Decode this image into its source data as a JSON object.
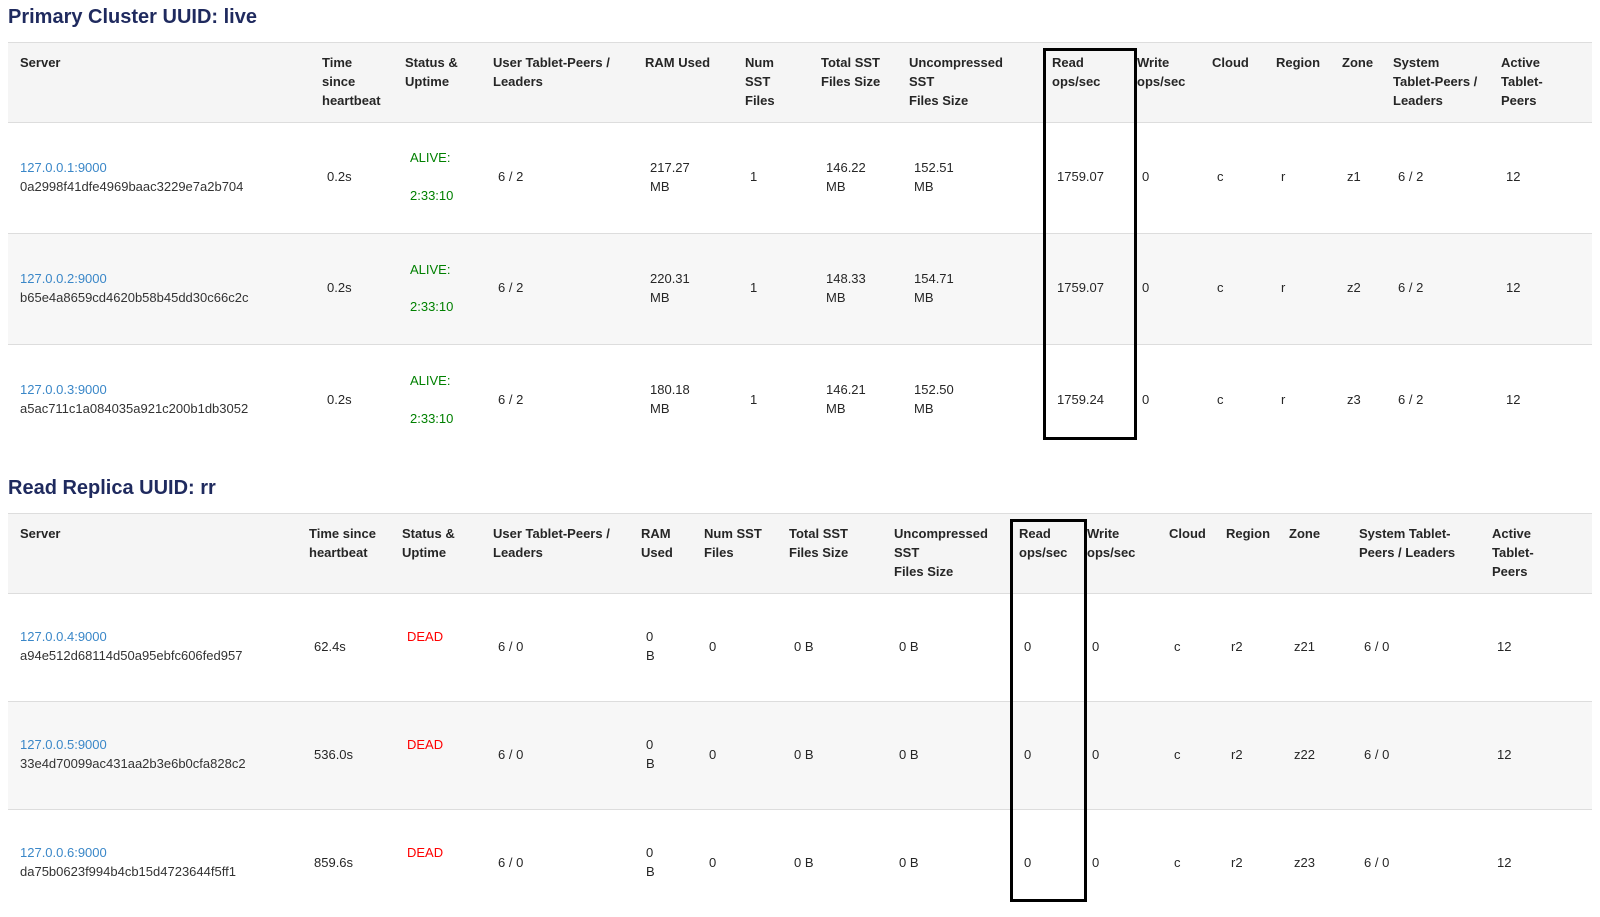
{
  "colors": {
    "title": "#1f2a5e",
    "link": "#3a87c8",
    "alive": "#008000",
    "dead": "#ff0000",
    "header_bg": "#f5f5f5",
    "row_stripe": "#f7f7f7",
    "divider": "#dddddd",
    "highlight_border": "#000000"
  },
  "highlight": {
    "column": "Read ops/sec"
  },
  "sections": [
    {
      "title": "Primary Cluster UUID: live",
      "status_color": "#008000",
      "columns": [
        {
          "key": "server",
          "label": "Server"
        },
        {
          "key": "time-since-heartbeat",
          "label": "Time\nsince\nheartbeat"
        },
        {
          "key": "status-uptime",
          "label": "Status &\nUptime"
        },
        {
          "key": "user-tablet-peers",
          "label": "User Tablet-Peers /\nLeaders"
        },
        {
          "key": "ram-used",
          "label": "RAM Used"
        },
        {
          "key": "num-sst-files",
          "label": "Num SST\nFiles"
        },
        {
          "key": "total-sst-size",
          "label": "Total SST\nFiles Size"
        },
        {
          "key": "uncompressed-sst-size",
          "label": "Uncompressed\nSST\nFiles Size"
        },
        {
          "key": "read-ops",
          "label": "Read\nops/sec"
        },
        {
          "key": "write-ops",
          "label": "Write\nops/sec"
        },
        {
          "key": "cloud",
          "label": "Cloud"
        },
        {
          "key": "region",
          "label": "Region"
        },
        {
          "key": "zone",
          "label": "Zone"
        },
        {
          "key": "system-tablet-peers",
          "label": "System\nTablet-Peers /\nLeaders"
        },
        {
          "key": "active-tablet-peers",
          "label": "Active\nTablet-\nPeers"
        }
      ],
      "rows": [
        {
          "address": "127.0.0.1:9000",
          "uuid": "0a2998f41dfe4969baac3229e7a2b704",
          "heartbeat": "0.2s",
          "status": "ALIVE:",
          "uptime": "2:33:10",
          "user_peers": "6 / 2",
          "ram": "217.27\nMB",
          "num_sst": "1",
          "total_sst": "146.22\nMB",
          "uncompressed_sst": "152.51\nMB",
          "read_ops": "1759.07",
          "write_ops": "0",
          "cloud": "c",
          "region": "r",
          "zone": "z1",
          "system_peers": "6 / 2",
          "active_peers": "12"
        },
        {
          "address": "127.0.0.2:9000",
          "uuid": "b65e4a8659cd4620b58b45dd30c66c2c",
          "heartbeat": "0.2s",
          "status": "ALIVE:",
          "uptime": "2:33:10",
          "user_peers": "6 / 2",
          "ram": "220.31\nMB",
          "num_sst": "1",
          "total_sst": "148.33\nMB",
          "uncompressed_sst": "154.71\nMB",
          "read_ops": "1759.07",
          "write_ops": "0",
          "cloud": "c",
          "region": "r",
          "zone": "z2",
          "system_peers": "6 / 2",
          "active_peers": "12"
        },
        {
          "address": "127.0.0.3:9000",
          "uuid": "a5ac711c1a084035a921c200b1db3052",
          "heartbeat": "0.2s",
          "status": "ALIVE:",
          "uptime": "2:33:10",
          "user_peers": "6 / 2",
          "ram": "180.18\nMB",
          "num_sst": "1",
          "total_sst": "146.21\nMB",
          "uncompressed_sst": "152.50\nMB",
          "read_ops": "1759.24",
          "write_ops": "0",
          "cloud": "c",
          "region": "r",
          "zone": "z3",
          "system_peers": "6 / 2",
          "active_peers": "12"
        }
      ]
    },
    {
      "title": "Read Replica UUID: rr",
      "status_color": "#ff0000",
      "columns": [
        {
          "key": "server",
          "label": "Server"
        },
        {
          "key": "time-since-heartbeat",
          "label": "Time since\nheartbeat"
        },
        {
          "key": "status-uptime",
          "label": "Status &\nUptime"
        },
        {
          "key": "user-tablet-peers",
          "label": "User Tablet-Peers /\nLeaders"
        },
        {
          "key": "ram-used",
          "label": "RAM\nUsed"
        },
        {
          "key": "num-sst-files",
          "label": "Num SST\nFiles"
        },
        {
          "key": "total-sst-size",
          "label": "Total SST\nFiles Size"
        },
        {
          "key": "uncompressed-sst-size",
          "label": "Uncompressed\nSST\nFiles Size"
        },
        {
          "key": "read-ops",
          "label": "Read\nops/sec"
        },
        {
          "key": "write-ops",
          "label": "Write\nops/sec"
        },
        {
          "key": "cloud",
          "label": "Cloud"
        },
        {
          "key": "region",
          "label": "Region"
        },
        {
          "key": "zone",
          "label": "Zone"
        },
        {
          "key": "system-tablet-peers",
          "label": "System Tablet-\nPeers / Leaders"
        },
        {
          "key": "active-tablet-peers",
          "label": "Active\nTablet-\nPeers"
        }
      ],
      "rows": [
        {
          "address": "127.0.0.4:9000",
          "uuid": "a94e512d68114d50a95ebfc606fed957",
          "heartbeat": "62.4s",
          "status": "DEAD",
          "uptime": "",
          "user_peers": "6 / 0",
          "ram": "0\nB",
          "num_sst": "0",
          "total_sst": "0 B",
          "uncompressed_sst": "0 B",
          "read_ops": "0",
          "write_ops": "0",
          "cloud": "c",
          "region": "r2",
          "zone": "z21",
          "system_peers": "6 / 0",
          "active_peers": "12"
        },
        {
          "address": "127.0.0.5:9000",
          "uuid": "33e4d70099ac431aa2b3e6b0cfa828c2",
          "heartbeat": "536.0s",
          "status": "DEAD",
          "uptime": "",
          "user_peers": "6 / 0",
          "ram": "0\nB",
          "num_sst": "0",
          "total_sst": "0 B",
          "uncompressed_sst": "0 B",
          "read_ops": "0",
          "write_ops": "0",
          "cloud": "c",
          "region": "r2",
          "zone": "z22",
          "system_peers": "6 / 0",
          "active_peers": "12"
        },
        {
          "address": "127.0.0.6:9000",
          "uuid": "da75b0623f994b4cb15d4723644f5ff1",
          "heartbeat": "859.6s",
          "status": "DEAD",
          "uptime": "",
          "user_peers": "6 / 0",
          "ram": "0\nB",
          "num_sst": "0",
          "total_sst": "0 B",
          "uncompressed_sst": "0 B",
          "read_ops": "0",
          "write_ops": "0",
          "cloud": "c",
          "region": "r2",
          "zone": "z23",
          "system_peers": "6 / 0",
          "active_peers": "12"
        }
      ]
    }
  ]
}
